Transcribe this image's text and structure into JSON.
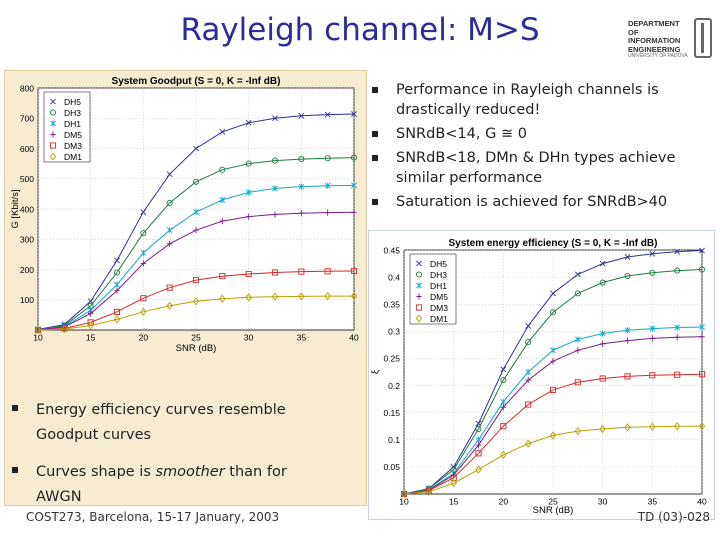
{
  "slide": {
    "title": "Rayleigh channel: M>S",
    "logo_text": "DEPARTMENT OF\nINFORMATION\nENGINEERING",
    "logo_sub": "UNIVERSITY OF PADOVA",
    "bullets_top": [
      "Performance in Rayleigh channels is drastically reduced!",
      "SNRdB<14, G ≅ 0",
      "SNRdB<18, DMn & DHn types achieve similar performance",
      "Saturation is achieved for SNRdB>40"
    ],
    "footer_left": "COST273, Barcelona, 15-17 January, 2003",
    "footer_right": "TD (03)-028"
  },
  "bullets_bottom": {
    "item1": "Energy efficiency curves resemble Goodput curves",
    "item2_pre": "Curves shape is ",
    "item2_em": "smoother",
    "item2_post": " than for AWGN"
  },
  "chart_data": [
    {
      "type": "line",
      "title": "System Goodput (S = 0, K = -Inf dB)",
      "xlabel": "SNR (dB)",
      "ylabel": "G [Kbit/s]",
      "xlim": [
        10,
        40
      ],
      "ylim": [
        0,
        800
      ],
      "xticks": [
        10,
        15,
        20,
        25,
        30,
        35,
        40
      ],
      "yticks": [
        100,
        200,
        300,
        400,
        500,
        600,
        700,
        800
      ],
      "legend_position": "top-left",
      "x": [
        10,
        12.5,
        15,
        17.5,
        20,
        22.5,
        25,
        27.5,
        30,
        32.5,
        35,
        37.5,
        40
      ],
      "series": [
        {
          "name": "DH5",
          "marker": "x",
          "color": "#2e3192",
          "values": [
            2,
            18,
            95,
            230,
            390,
            515,
            600,
            655,
            685,
            700,
            708,
            712,
            714
          ]
        },
        {
          "name": "DH3",
          "marker": "o",
          "color": "#1c7b3f",
          "values": [
            2,
            15,
            80,
            190,
            320,
            420,
            490,
            530,
            550,
            560,
            565,
            568,
            570
          ]
        },
        {
          "name": "DH1",
          "marker": "*",
          "color": "#12a8c8",
          "values": [
            1,
            12,
            65,
            150,
            255,
            330,
            390,
            430,
            455,
            468,
            474,
            477,
            478
          ]
        },
        {
          "name": "DM5",
          "marker": "+",
          "color": "#7a1d8f",
          "values": [
            1,
            10,
            55,
            130,
            220,
            285,
            330,
            360,
            375,
            382,
            386,
            388,
            389
          ]
        },
        {
          "name": "DM3",
          "marker": "s",
          "color": "#d62728",
          "values": [
            0,
            5,
            25,
            60,
            105,
            140,
            165,
            178,
            185,
            190,
            193,
            194,
            195
          ]
        },
        {
          "name": "DM1",
          "marker": "d",
          "color": "#b5a300",
          "values": [
            0,
            3,
            15,
            35,
            60,
            80,
            95,
            103,
            108,
            110,
            111,
            112,
            112
          ]
        }
      ]
    },
    {
      "type": "line",
      "title": "System energy efficiency (S = 0, K = -Inf dB)",
      "xlabel": "SNR (dB)",
      "ylabel": "ξ",
      "xlim": [
        10,
        40
      ],
      "ylim": [
        0,
        0.45
      ],
      "xticks": [
        10,
        15,
        20,
        25,
        30,
        35,
        40
      ],
      "yticks": [
        0.05,
        0.1,
        0.15,
        0.2,
        0.25,
        0.3,
        0.35,
        0.4,
        0.45
      ],
      "legend_position": "top-left",
      "x": [
        10,
        12.5,
        15,
        17.5,
        20,
        22.5,
        25,
        27.5,
        30,
        32.5,
        35,
        37.5,
        40
      ],
      "series": [
        {
          "name": "DH5",
          "marker": "x",
          "color": "#2e3192",
          "values": [
            0.0,
            0.01,
            0.05,
            0.13,
            0.23,
            0.31,
            0.37,
            0.405,
            0.425,
            0.437,
            0.443,
            0.447,
            0.449
          ]
        },
        {
          "name": "DH3",
          "marker": "o",
          "color": "#1c7b3f",
          "values": [
            0.0,
            0.01,
            0.045,
            0.12,
            0.21,
            0.28,
            0.335,
            0.37,
            0.39,
            0.402,
            0.408,
            0.412,
            0.414
          ]
        },
        {
          "name": "DH1",
          "marker": "*",
          "color": "#12a8c8",
          "values": [
            0.0,
            0.008,
            0.038,
            0.1,
            0.17,
            0.225,
            0.265,
            0.285,
            0.296,
            0.302,
            0.305,
            0.307,
            0.308
          ]
        },
        {
          "name": "DM5",
          "marker": "+",
          "color": "#7a1d8f",
          "values": [
            0.0,
            0.007,
            0.035,
            0.09,
            0.16,
            0.21,
            0.245,
            0.265,
            0.277,
            0.283,
            0.287,
            0.289,
            0.29
          ]
        },
        {
          "name": "DM3",
          "marker": "s",
          "color": "#d62728",
          "values": [
            0.0,
            0.006,
            0.03,
            0.075,
            0.125,
            0.165,
            0.192,
            0.206,
            0.213,
            0.217,
            0.219,
            0.22,
            0.221
          ]
        },
        {
          "name": "DM1",
          "marker": "d",
          "color": "#b5a300",
          "values": [
            0.0,
            0.004,
            0.02,
            0.045,
            0.072,
            0.093,
            0.108,
            0.116,
            0.12,
            0.123,
            0.124,
            0.125,
            0.125
          ]
        }
      ]
    }
  ]
}
